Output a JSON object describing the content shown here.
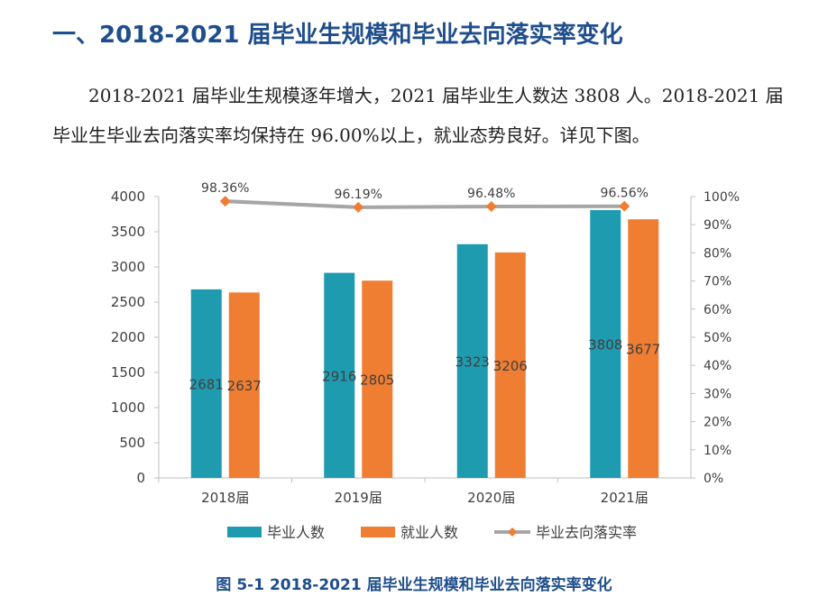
{
  "heading": "一、2018-2021 届毕业生规模和毕业去向落实率变化",
  "paragraph": "2018-2021 届毕业生规模逐年增大，2021 届毕业生人数达 3808 人。2018-2021 届毕业生毕业去向落实率均保持在 96.00%以上，就业态势良好。详见下图。",
  "caption": "图 5-1 2018-2021 届毕业生规模和毕业去向落实率变化",
  "colors": {
    "graduates": "#1f9bb0",
    "employed": "#ef7d32",
    "rate_line": "#a6a6a6",
    "rate_marker": "#ef7d32"
  },
  "chart_data": {
    "type": "bar",
    "categories": [
      "2018届",
      "2019届",
      "2020届",
      "2021届"
    ],
    "series": [
      {
        "name": "毕业人数",
        "values": [
          2681,
          2916,
          3323,
          3808
        ],
        "labels": [
          "2681",
          "2916",
          "3323",
          "3808"
        ]
      },
      {
        "name": "就业人数",
        "values": [
          2637,
          2805,
          3206,
          3677
        ],
        "labels": [
          "2637",
          "2805",
          "3206",
          "3677"
        ]
      },
      {
        "name": "毕业去向落实率",
        "type": "line",
        "axis": "right",
        "values": [
          98.36,
          96.19,
          96.48,
          96.56
        ],
        "labels": [
          "98.36%",
          "96.19%",
          "96.48%",
          "96.56%"
        ]
      }
    ],
    "ylim": [
      0,
      4000
    ],
    "yticks": [
      "0",
      "500",
      "1000",
      "1500",
      "2000",
      "2500",
      "3000",
      "3500",
      "4000"
    ],
    "y2lim": [
      0,
      100
    ],
    "y2ticks": [
      "0%",
      "10%",
      "20%",
      "30%",
      "40%",
      "50%",
      "60%",
      "70%",
      "80%",
      "90%",
      "100%"
    ],
    "grid": false,
    "legend": "bottom"
  }
}
